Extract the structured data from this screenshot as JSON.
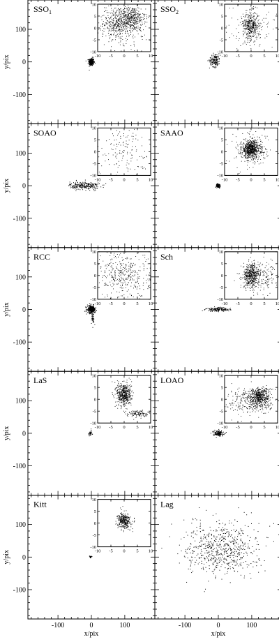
{
  "chart_data": {
    "type": "scatter",
    "xlabel": "x/pix",
    "ylabel": "y/pix",
    "xlim": [
      -190,
      190
    ],
    "ylim": [
      -190,
      190
    ],
    "xticks": [
      -100,
      0,
      100
    ],
    "yticks": [
      -100,
      0,
      100
    ],
    "inset_ticks": [
      -10,
      -5,
      0,
      5,
      10
    ],
    "inset_lim": [
      -10,
      10
    ],
    "panels": [
      {
        "name": "SSO",
        "subscript": "1",
        "inset": true,
        "main_clusters": [
          {
            "x": 0,
            "y": 0,
            "sx": 4,
            "sy": 6,
            "n": 260
          }
        ],
        "inset_clusters": [
          {
            "x": -2,
            "y": 2,
            "sx": 3,
            "sy": 3,
            "n": 380
          },
          {
            "x": 3,
            "y": 4,
            "sx": 2.5,
            "sy": 2.5,
            "n": 300
          },
          {
            "x": 0,
            "y": 0,
            "sx": 6,
            "sy": 6,
            "n": 140
          }
        ]
      },
      {
        "name": "SSO",
        "subscript": "2",
        "inset": true,
        "main_clusters": [
          {
            "x": -10,
            "y": 5,
            "sx": 8,
            "sy": 10,
            "n": 150
          }
        ],
        "inset_clusters": [
          {
            "x": 0,
            "y": 1,
            "sx": 1.5,
            "sy": 3,
            "n": 380
          },
          {
            "x": 0,
            "y": 0,
            "sx": 5,
            "sy": 6,
            "n": 110
          }
        ]
      },
      {
        "name": "SOAO",
        "subscript": "",
        "inset": true,
        "main_clusters": [
          {
            "x": -20,
            "y": 0,
            "sx": 22,
            "sy": 6,
            "n": 240
          }
        ],
        "inset_clusters": [
          {
            "x": 0,
            "y": 0,
            "sx": 6,
            "sy": 6,
            "n": 160
          }
        ]
      },
      {
        "name": "SAAO",
        "subscript": "",
        "inset": true,
        "main_clusters": [
          {
            "x": 0,
            "y": 0,
            "sx": 3,
            "sy": 3,
            "n": 110
          }
        ],
        "inset_clusters": [
          {
            "x": 0,
            "y": 1,
            "sx": 1.8,
            "sy": 1.8,
            "n": 700
          },
          {
            "x": 0,
            "y": 0,
            "sx": 4,
            "sy": 4,
            "n": 120
          }
        ]
      },
      {
        "name": "RCC",
        "subscript": "",
        "inset": true,
        "main_clusters": [
          {
            "x": 0,
            "y": 0,
            "sx": 6,
            "sy": 6,
            "n": 300
          },
          {
            "x": 5,
            "y": -30,
            "sx": 2,
            "sy": 8,
            "n": 30
          }
        ],
        "inset_clusters": [
          {
            "x": 0,
            "y": 0,
            "sx": 5,
            "sy": 5,
            "n": 380
          }
        ]
      },
      {
        "name": "Sch",
        "subscript": "",
        "inset": true,
        "main_clusters": [
          {
            "x": 0,
            "y": 0,
            "sx": 18,
            "sy": 3,
            "n": 150
          }
        ],
        "inset_clusters": [
          {
            "x": 0,
            "y": 0,
            "sx": 1.5,
            "sy": 2.5,
            "n": 450
          },
          {
            "x": 4,
            "y": 0,
            "sx": 3.5,
            "sy": 3,
            "n": 200
          }
        ]
      },
      {
        "name": "LaS",
        "subscript": "",
        "inset": true,
        "main_clusters": [
          {
            "x": -3,
            "y": 0,
            "sx": 3,
            "sy": 4,
            "n": 40
          }
        ],
        "inset_clusters": [
          {
            "x": 0,
            "y": 2,
            "sx": 1.4,
            "sy": 2.5,
            "n": 500
          },
          {
            "x": 5,
            "y": -6,
            "sx": 2,
            "sy": 0.7,
            "n": 120
          }
        ]
      },
      {
        "name": "LOAO",
        "subscript": "",
        "inset": true,
        "main_clusters": [
          {
            "x": 0,
            "y": 0,
            "sx": 8,
            "sy": 4,
            "n": 150
          }
        ],
        "inset_clusters": [
          {
            "x": 3,
            "y": 1,
            "sx": 2,
            "sy": 2,
            "n": 500
          },
          {
            "x": 0,
            "y": -1,
            "sx": 5,
            "sy": 3,
            "n": 250
          }
        ]
      },
      {
        "name": "Kitt",
        "subscript": "",
        "inset": true,
        "main_clusters": [
          {
            "x": -2,
            "y": 0,
            "sx": 1.5,
            "sy": 1.5,
            "n": 25
          }
        ],
        "inset_clusters": [
          {
            "x": 0,
            "y": 1,
            "sx": 1.2,
            "sy": 1.6,
            "n": 350
          }
        ]
      },
      {
        "name": "Lag",
        "subscript": "",
        "inset": false,
        "main_clusters": [
          {
            "x": 10,
            "y": 25,
            "sx": 55,
            "sy": 40,
            "n": 650
          }
        ],
        "inset_clusters": []
      }
    ]
  }
}
